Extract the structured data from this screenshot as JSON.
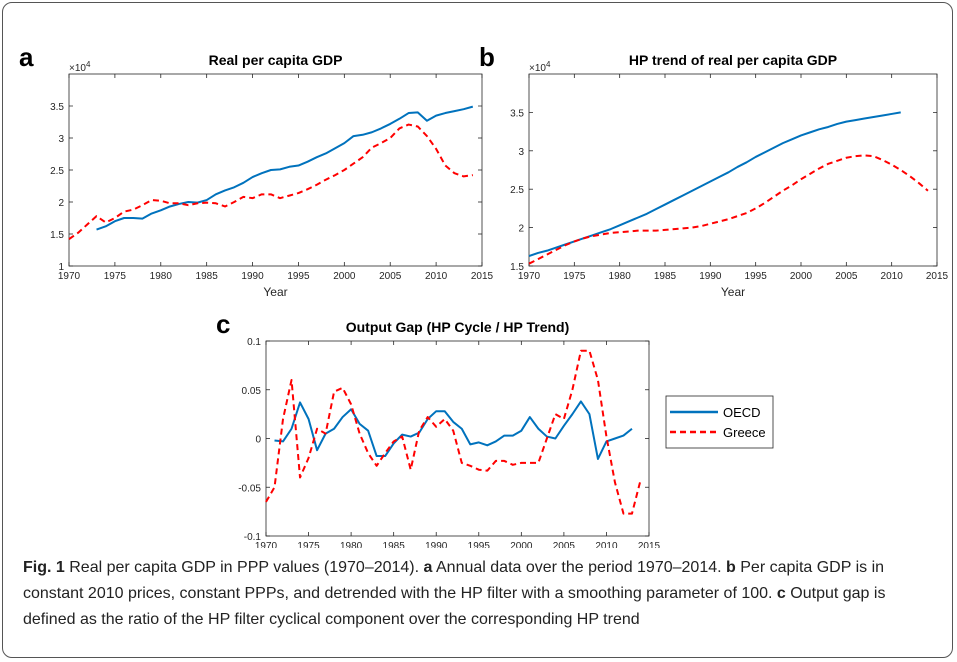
{
  "chart_data": [
    {
      "type": "line",
      "panel": "a",
      "title": "Real per capita GDP",
      "xlabel": "Year",
      "y_scale": {
        "base": "×10",
        "exponent": "4"
      },
      "xlim": [
        1970,
        2015
      ],
      "xticks": [
        1970,
        1975,
        1980,
        1985,
        1990,
        1995,
        2000,
        2005,
        2010,
        2015
      ],
      "ylim": [
        1,
        4
      ],
      "yticks": [
        1,
        1.5,
        2,
        2.5,
        3,
        3.5
      ],
      "x": [
        1970,
        1971,
        1972,
        1973,
        1974,
        1975,
        1976,
        1977,
        1978,
        1979,
        1980,
        1981,
        1982,
        1983,
        1984,
        1985,
        1986,
        1987,
        1988,
        1989,
        1990,
        1991,
        1992,
        1993,
        1994,
        1995,
        1996,
        1997,
        1998,
        1999,
        2000,
        2001,
        2002,
        2003,
        2004,
        2005,
        2006,
        2007,
        2008,
        2009,
        2010,
        2011,
        2012,
        2013,
        2014
      ],
      "series": [
        {
          "color": "#0072bd",
          "dash": false,
          "values": [
            null,
            null,
            null,
            1.57,
            1.62,
            1.7,
            1.75,
            1.75,
            1.74,
            1.82,
            1.87,
            1.93,
            1.97,
            2.0,
            1.99,
            2.03,
            2.12,
            2.18,
            2.23,
            2.3,
            2.39,
            2.45,
            2.5,
            2.51,
            2.55,
            2.57,
            2.63,
            2.7,
            2.76,
            2.84,
            2.92,
            3.03,
            3.05,
            3.09,
            3.15,
            3.22,
            3.3,
            3.39,
            3.4,
            3.27,
            3.35,
            3.39,
            3.42,
            3.45,
            3.49
          ]
        },
        {
          "color": "#ff0000",
          "dash": true,
          "values": [
            1.42,
            1.52,
            1.65,
            1.78,
            1.68,
            1.75,
            1.85,
            1.88,
            1.95,
            2.03,
            2.02,
            1.98,
            1.98,
            1.95,
            1.98,
            1.99,
            1.98,
            1.93,
            2.0,
            2.08,
            2.06,
            2.12,
            2.12,
            2.06,
            2.1,
            2.14,
            2.2,
            2.27,
            2.35,
            2.42,
            2.5,
            2.6,
            2.7,
            2.85,
            2.92,
            3.0,
            3.15,
            3.21,
            3.18,
            3.03,
            2.83,
            2.57,
            2.45,
            2.4,
            2.42
          ]
        }
      ]
    },
    {
      "type": "line",
      "panel": "b",
      "title": "HP trend of real per capita GDP",
      "xlabel": "Year",
      "y_scale": {
        "base": "×10",
        "exponent": "4"
      },
      "xlim": [
        1970,
        2015
      ],
      "xticks": [
        1970,
        1975,
        1980,
        1985,
        1990,
        1995,
        2000,
        2005,
        2010,
        2015
      ],
      "ylim": [
        1.5,
        4
      ],
      "yticks": [
        1.5,
        2,
        2.5,
        3,
        3.5
      ],
      "x": [
        1970,
        1971,
        1972,
        1973,
        1974,
        1975,
        1976,
        1977,
        1978,
        1979,
        1980,
        1981,
        1982,
        1983,
        1984,
        1985,
        1986,
        1987,
        1988,
        1989,
        1990,
        1991,
        1992,
        1993,
        1994,
        1995,
        1996,
        1997,
        1998,
        1999,
        2000,
        2001,
        2002,
        2003,
        2004,
        2005,
        2006,
        2007,
        2008,
        2009,
        2010,
        2011,
        2012,
        2013,
        2014
      ],
      "series": [
        {
          "color": "#0072bd",
          "dash": false,
          "values": [
            1.63,
            1.67,
            1.7,
            1.74,
            1.78,
            1.82,
            1.86,
            1.9,
            1.94,
            1.98,
            2.03,
            2.08,
            2.13,
            2.18,
            2.24,
            2.3,
            2.36,
            2.42,
            2.48,
            2.54,
            2.6,
            2.66,
            2.72,
            2.79,
            2.85,
            2.92,
            2.98,
            3.04,
            3.1,
            3.15,
            3.2,
            3.24,
            3.28,
            3.31,
            3.35,
            3.38,
            3.4,
            3.42,
            3.44,
            3.46,
            3.48,
            3.5,
            null,
            null,
            null
          ]
        },
        {
          "color": "#ff0000",
          "dash": true,
          "values": [
            1.53,
            1.59,
            1.65,
            1.71,
            1.77,
            1.82,
            1.86,
            1.89,
            1.91,
            1.93,
            1.94,
            1.95,
            1.96,
            1.96,
            1.96,
            1.97,
            1.98,
            1.99,
            2.0,
            2.02,
            2.05,
            2.08,
            2.11,
            2.15,
            2.19,
            2.25,
            2.32,
            2.4,
            2.48,
            2.55,
            2.63,
            2.7,
            2.77,
            2.83,
            2.87,
            2.91,
            2.93,
            2.94,
            2.93,
            2.88,
            2.82,
            2.75,
            2.67,
            2.58,
            2.48
          ]
        }
      ]
    },
    {
      "type": "line",
      "panel": "c",
      "title": "Output Gap (HP Cycle / HP Trend)",
      "xlabel": "Year",
      "xlim": [
        1970,
        2015
      ],
      "xticks": [
        1970,
        1975,
        1980,
        1985,
        1990,
        1995,
        2000,
        2005,
        2010,
        2015
      ],
      "ylim": [
        -0.1,
        0.1
      ],
      "yticks": [
        -0.1,
        -0.05,
        0,
        0.05,
        0.1
      ],
      "x": [
        1970,
        1971,
        1972,
        1973,
        1974,
        1975,
        1976,
        1977,
        1978,
        1979,
        1980,
        1981,
        1982,
        1983,
        1984,
        1985,
        1986,
        1987,
        1988,
        1989,
        1990,
        1991,
        1992,
        1993,
        1994,
        1995,
        1996,
        1997,
        1998,
        1999,
        2000,
        2001,
        2002,
        2003,
        2004,
        2005,
        2006,
        2007,
        2008,
        2009,
        2010,
        2011,
        2012,
        2013,
        2014
      ],
      "series": [
        {
          "name": "OECD",
          "color": "#0072bd",
          "dash": false,
          "values": [
            null,
            -0.002,
            -0.003,
            0.01,
            0.037,
            0.02,
            -0.012,
            0.005,
            0.01,
            0.022,
            0.03,
            0.015,
            0.008,
            -0.018,
            -0.018,
            -0.005,
            0.004,
            0.002,
            0.006,
            0.02,
            0.028,
            0.028,
            0.017,
            0.01,
            -0.006,
            -0.004,
            -0.007,
            -0.003,
            0.003,
            0.003,
            0.008,
            0.022,
            0.01,
            0.002,
            0.0,
            0.013,
            0.025,
            0.038,
            0.025,
            -0.021,
            -0.003,
            0.0,
            0.003,
            0.01,
            null
          ]
        },
        {
          "name": "Greece",
          "color": "#ff0000",
          "dash": true,
          "values": [
            -0.065,
            -0.05,
            0.02,
            0.06,
            -0.04,
            -0.02,
            0.01,
            0.005,
            0.048,
            0.052,
            0.035,
            0.005,
            -0.015,
            -0.028,
            -0.015,
            -0.003,
            0.002,
            -0.032,
            0.008,
            0.022,
            0.012,
            0.02,
            0.008,
            -0.025,
            -0.028,
            -0.032,
            -0.033,
            -0.023,
            -0.023,
            -0.027,
            -0.025,
            -0.025,
            -0.025,
            0.0,
            0.025,
            0.02,
            0.05,
            0.09,
            0.09,
            0.06,
            0.002,
            -0.045,
            -0.077,
            -0.077,
            -0.043
          ]
        }
      ]
    }
  ],
  "caption": {
    "label": "Fig. 1",
    "text": "Real per capita GDP in PPP values (1970–2014).",
    "items": [
      {
        "letter": "a",
        "text": "Annual data over the period 1970–2014."
      },
      {
        "letter": "b",
        "text": "Per capita GDP is in constant 2010 prices, constant PPPs, and detrended with the HP filter with a smoothing parameter of 100."
      },
      {
        "letter": "c",
        "text": "Output gap is defined as the ratio of the HP filter cyclical component over the corresponding HP trend"
      }
    ]
  }
}
